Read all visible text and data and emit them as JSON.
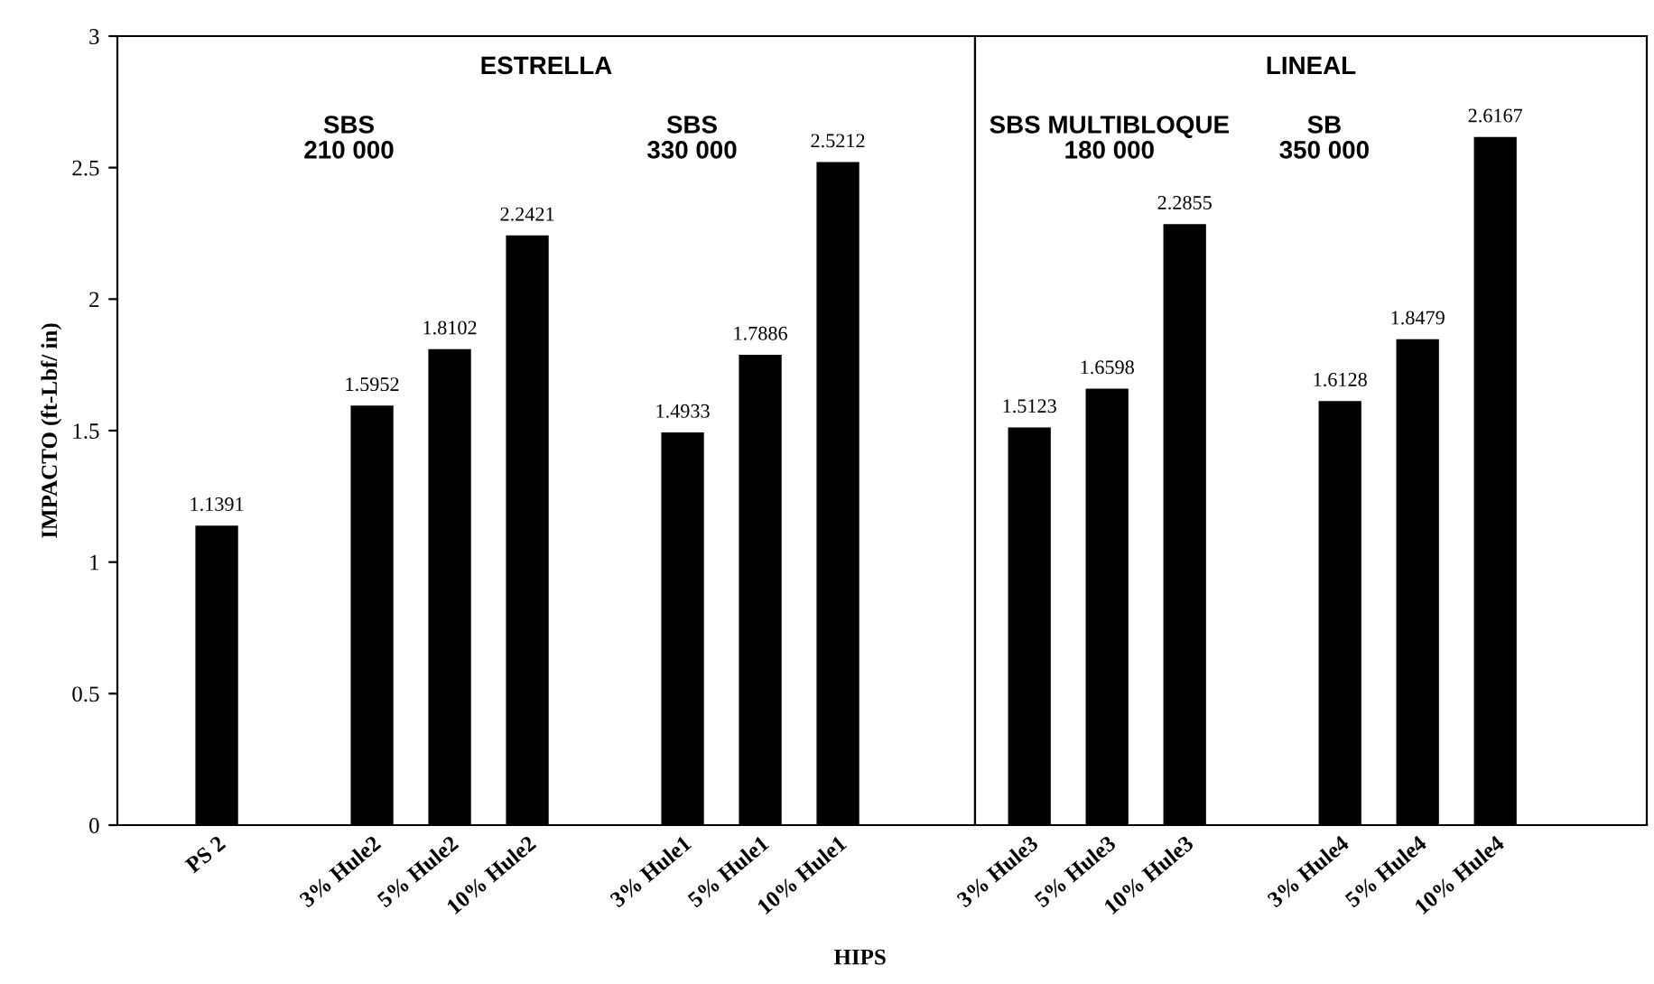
{
  "chart_data": [
    {
      "type": "bar",
      "ylabel": "IMPACTO (ft-Lbf/ in)",
      "xlabel": "HIPS",
      "categories": [
        "PS 2",
        null,
        "3% Hule2",
        "5% Hule2",
        "10% Hule2",
        null,
        "3% Hule1",
        "5% Hule1",
        "10% Hule1"
      ],
      "values": [
        1.1391,
        null,
        1.5952,
        1.8102,
        2.2421,
        null,
        1.4933,
        1.7886,
        2.5212
      ],
      "data_labels": true,
      "color": "#000000",
      "ylim": [
        0,
        3
      ],
      "yticks": [
        0,
        0.5,
        1,
        1.5,
        2,
        2.5,
        3
      ],
      "annotations": [
        "ESTRELLA",
        "SBS\n210 000",
        "SBS\n330 000"
      ]
    },
    {
      "type": "bar",
      "categories": [
        "3% Hule3",
        "5% Hule3",
        "10% Hule3",
        null,
        "3% Hule4",
        "5% Hule4",
        "10% Hule4"
      ],
      "values": [
        1.5123,
        1.6598,
        2.2855,
        null,
        1.6128,
        1.8479,
        2.6167
      ],
      "data_labels": true,
      "color": "#000000",
      "ylim": [
        0,
        3
      ],
      "tick_labels": "x",
      "annotations": [
        "LINEAL",
        "SBS MULTIBLOQUE\n180 000",
        "SB\n350 000"
      ]
    }
  ]
}
